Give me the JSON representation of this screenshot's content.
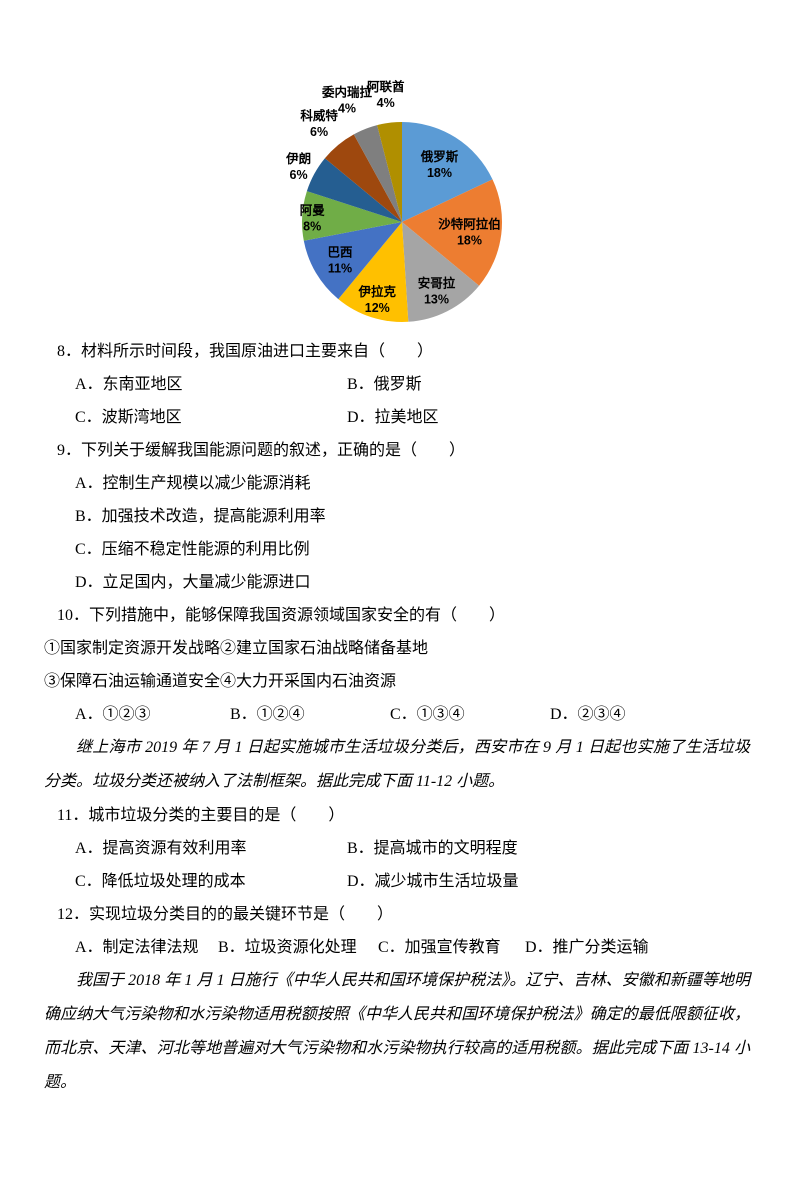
{
  "chart_data": {
    "type": "pie",
    "title": "",
    "legend_position": "none",
    "start_angle_deg": 0,
    "direction": "clockwise",
    "data_label_format": "category name + percent",
    "slices": [
      {
        "label": "俄罗斯",
        "value": 18,
        "pct_label": "18%",
        "color": "#5B9BD5",
        "label_placement": "inside"
      },
      {
        "label": "沙特阿拉伯",
        "value": 18,
        "pct_label": "18%",
        "color": "#ED7D31",
        "label_placement": "inside"
      },
      {
        "label": "安哥拉",
        "value": 13,
        "pct_label": "13%",
        "color": "#A5A5A5",
        "label_placement": "inside"
      },
      {
        "label": "伊拉克",
        "value": 12,
        "pct_label": "12%",
        "color": "#FFC000",
        "label_placement": "inside"
      },
      {
        "label": "巴西",
        "value": 11,
        "pct_label": "11%",
        "color": "#4472C4",
        "label_placement": "inside"
      },
      {
        "label": "阿曼",
        "value": 8,
        "pct_label": "8%",
        "color": "#70AD47",
        "label_placement": "inside-edge"
      },
      {
        "label": "伊朗",
        "value": 6,
        "pct_label": "6%",
        "color": "#255E91",
        "label_placement": "outside"
      },
      {
        "label": "科威特",
        "value": 6,
        "pct_label": "6%",
        "color": "#9E480E",
        "label_placement": "outside"
      },
      {
        "label": "委内瑞拉",
        "value": 4,
        "pct_label": "4%",
        "color": "#7F7F7F",
        "label_placement": "outside"
      },
      {
        "label": "阿联酋",
        "value": 4,
        "pct_label": "4%",
        "color": "#B08F00",
        "label_placement": "outside"
      }
    ]
  },
  "questions": {
    "q8": {
      "number": "8．",
      "stem": "材料所示时间段，我国原油进口主要来自（　　）",
      "options": [
        "A．东南亚地区",
        "B．俄罗斯",
        "C．波斯湾地区",
        "D．拉美地区"
      ]
    },
    "q9": {
      "number": "9．",
      "stem": "下列关于缓解我国能源问题的叙述，正确的是（　　）",
      "options": [
        "A．控制生产规模以减少能源消耗",
        "B．加强技术改造，提高能源利用率",
        "C．压缩不稳定性能源的利用比例",
        "D．立足国内，大量减少能源进口"
      ]
    },
    "q10": {
      "number": "10．",
      "stem": "下列措施中，能够保障我国资源领域国家安全的有（　　）",
      "items": [
        "①国家制定资源开发战略②建立国家石油战略储备基地",
        "③保障石油运输通道安全④大力开采国内石油资源"
      ],
      "options": [
        "A．①②③",
        "B．①②④",
        "C．①③④",
        "D．②③④"
      ]
    },
    "q11": {
      "number": "11．",
      "stem": "城市垃圾分类的主要目的是（　　）",
      "options": [
        "A．提高资源有效利用率",
        "B．提高城市的文明程度",
        "C．降低垃圾处理的成本",
        "D．减少城市生活垃圾量"
      ]
    },
    "q12": {
      "number": "12．",
      "stem": "实现垃圾分类目的的最关键环节是（　　）",
      "options": [
        "A．制定法律法规",
        "B．垃圾资源化处理",
        "C．加强宣传教育",
        "D．推广分类运输"
      ]
    }
  },
  "passages": {
    "p11_12": "继上海市 2019 年 7 月 1 日起实施城市生活垃圾分类后，西安市在 9 月 1 日起也实施了生活垃圾分类。垃圾分类还被纳入了法制框架。据此完成下面 11-12 小题。",
    "p13_14": "我国于 2018 年 1 月 1 日施行《中华人民共和国环境保护税法》。辽宁、吉林、安徽和新疆等地明确应纳大气污染物和水污染物适用税额按照《中华人民共和国环境保护税法》确定的最低限额征收，而北京、天津、河北等地普遍对大气污染物和水污染物执行较高的适用税额。据此完成下面 13-14 小题。"
  }
}
